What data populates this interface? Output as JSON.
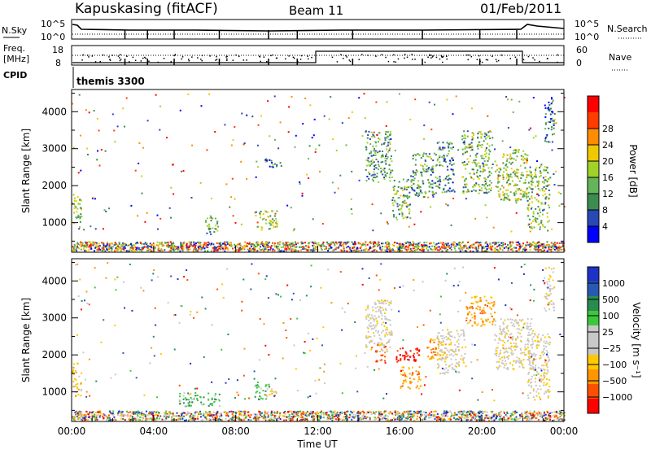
{
  "header": {
    "station": "Kapuskasing (fitACF)",
    "beam": "Beam 11",
    "date": "01/Feb/2011"
  },
  "noise_panel": {
    "left_label": "N.Sky",
    "right_label": "N.Search",
    "left_ticks": [
      "10^5",
      "10^0"
    ],
    "right_ticks": [
      "10^5",
      "10^0"
    ]
  },
  "freq_panel": {
    "left_label_1": "Freq.",
    "left_label_2": "[MHz]",
    "right_label": "Nave",
    "left_ticks": [
      "18",
      "8"
    ],
    "right_ticks": [
      "60",
      "0"
    ],
    "cpid_label": "CPID",
    "cpid_value": "themis 3300"
  },
  "colors": {
    "power": [
      "#0000ff",
      "#2848b4",
      "#3c8c50",
      "#64b45a",
      "#a0d228",
      "#f0c800",
      "#ff8c00",
      "#ff3c00",
      "#ff0000"
    ],
    "velocity": [
      "#ff0000",
      "#ff5000",
      "#ff9600",
      "#ffc800",
      "#c8c8c8",
      "#c8c8c8",
      "#3cc83c",
      "#288c50",
      "#285ab4",
      "#1e32c8"
    ]
  },
  "chart_data": [
    {
      "type": "heatmap",
      "name": "power",
      "ylabel": "Slant Range [km]",
      "yticks": [
        "1000",
        "2000",
        "3000",
        "4000"
      ],
      "ylim": [
        200,
        4600
      ],
      "xlim": [
        0,
        24
      ],
      "colorbar_label": "Power [dB]",
      "colorbar_ticks": [
        "4",
        "8",
        "12",
        "16",
        "20",
        "24",
        "28"
      ],
      "colorbar_range": [
        0,
        30
      ],
      "patches": [
        {
          "t": [
            0.0,
            0.45
          ],
          "r": [
            900,
            1800
          ],
          "v": 14
        },
        {
          "t": [
            6.5,
            7.2
          ],
          "r": [
            700,
            1200
          ],
          "v": 10
        },
        {
          "t": [
            8.9,
            10.0
          ],
          "r": [
            800,
            1350
          ],
          "v": 14
        },
        {
          "t": [
            9.4,
            10.2
          ],
          "r": [
            2500,
            2750
          ],
          "v": 6
        },
        {
          "t": [
            14.3,
            15.6
          ],
          "r": [
            2100,
            3500
          ],
          "v": 10
        },
        {
          "t": [
            15.6,
            16.5
          ],
          "r": [
            1100,
            2200
          ],
          "v": 12
        },
        {
          "t": [
            16.5,
            17.8
          ],
          "r": [
            1700,
            2900
          ],
          "v": 10
        },
        {
          "t": [
            17.8,
            18.6
          ],
          "r": [
            1800,
            3200
          ],
          "v": 9
        },
        {
          "t": [
            19.0,
            20.5
          ],
          "r": [
            1800,
            3500
          ],
          "v": 12
        },
        {
          "t": [
            20.6,
            22.2
          ],
          "r": [
            1600,
            3000
          ],
          "v": 14
        },
        {
          "t": [
            22.2,
            23.3
          ],
          "r": [
            800,
            2600
          ],
          "v": 12
        },
        {
          "t": [
            23.0,
            23.5
          ],
          "r": [
            3200,
            4400
          ],
          "v": 6
        }
      ]
    },
    {
      "type": "heatmap",
      "name": "velocity",
      "ylabel": "Slant Range [km]",
      "yticks": [
        "1000",
        "2000",
        "3000",
        "4000"
      ],
      "ylim": [
        200,
        4600
      ],
      "xlim": [
        0,
        24
      ],
      "xlabel": "Time UT",
      "xticks": [
        "00:00",
        "04:00",
        "08:00",
        "12:00",
        "16:00",
        "20:00",
        "00:00"
      ],
      "colorbar_label": "Velocity [m s⁻¹]",
      "colorbar_ticks": [
        "1000",
        "500",
        "100",
        "25",
        "−25",
        "−100",
        "−500",
        "−1000"
      ],
      "patches": [
        {
          "t": [
            0.0,
            0.45
          ],
          "r": [
            900,
            1800
          ],
          "v": 3
        },
        {
          "t": [
            5.2,
            7.2
          ],
          "r": [
            600,
            1000
          ],
          "v": 6
        },
        {
          "t": [
            8.9,
            9.6
          ],
          "r": [
            800,
            1300
          ],
          "v": 6
        },
        {
          "t": [
            9.6,
            10.0
          ],
          "r": [
            900,
            1200
          ],
          "v": 3
        },
        {
          "t": [
            14.3,
            15.6
          ],
          "r": [
            2100,
            3500
          ],
          "v": 4
        },
        {
          "t": [
            14.8,
            15.3
          ],
          "r": [
            1800,
            2300
          ],
          "v": 1
        },
        {
          "t": [
            16.0,
            17.0
          ],
          "r": [
            1100,
            1700
          ],
          "v": 2
        },
        {
          "t": [
            15.7,
            17.0
          ],
          "r": [
            1800,
            2200
          ],
          "v": 0
        },
        {
          "t": [
            17.3,
            18.2
          ],
          "r": [
            1900,
            2500
          ],
          "v": 2
        },
        {
          "t": [
            17.8,
            19.2
          ],
          "r": [
            1500,
            2700
          ],
          "v": 4
        },
        {
          "t": [
            19.2,
            20.6
          ],
          "r": [
            2800,
            3600
          ],
          "v": 2
        },
        {
          "t": [
            20.6,
            22.5
          ],
          "r": [
            1600,
            3000
          ],
          "v": 4
        },
        {
          "t": [
            22.2,
            23.3
          ],
          "r": [
            800,
            2600
          ],
          "v": 4
        },
        {
          "t": [
            23.0,
            23.5
          ],
          "r": [
            3200,
            4400
          ],
          "v": 4
        }
      ]
    }
  ]
}
